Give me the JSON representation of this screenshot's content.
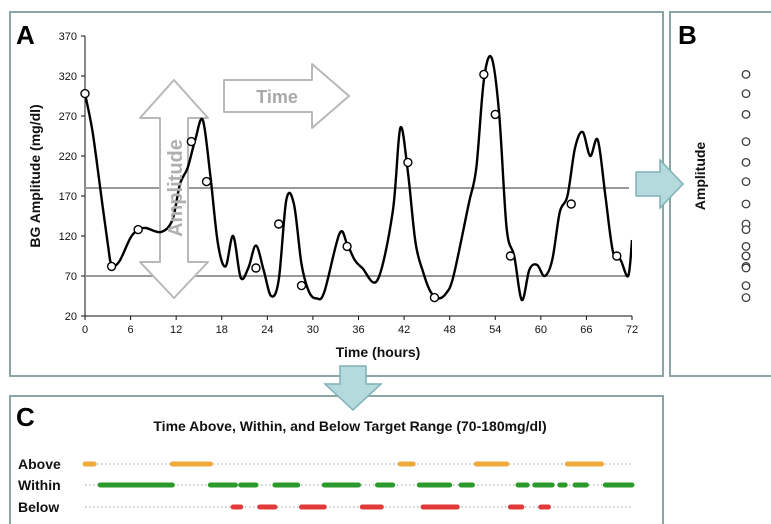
{
  "panels": {
    "a_label": "A",
    "b_label": "B",
    "c_label": "C"
  },
  "annotations": {
    "time": "Time",
    "amplitude": "Amplitude"
  },
  "colors": {
    "frame": "#8aa6a6",
    "arrow_fill": "#b5dadd",
    "arrow_stroke": "#7fb1b7",
    "range_line": "#9a9a9a",
    "above": "#f0a93a",
    "within": "#2a9a2a",
    "below": "#e23a3a",
    "dots": "#999999"
  },
  "chart_data": [
    {
      "type": "line",
      "title": "",
      "xlabel": "Time (hours)",
      "ylabel": "BG Amplitude (mg/dl)",
      "xlim": [
        0,
        72
      ],
      "ylim": [
        20,
        370
      ],
      "xticks": [
        0,
        6,
        12,
        18,
        24,
        30,
        36,
        42,
        48,
        54,
        60,
        66,
        72
      ],
      "yticks": [
        20,
        70,
        120,
        170,
        220,
        270,
        320,
        370
      ],
      "target_range": [
        70,
        180
      ],
      "grid": false,
      "series": [
        {
          "x": [
            0,
            1,
            2,
            3,
            3.5,
            4.5,
            6,
            7,
            8,
            10,
            11.5,
            12.5,
            13.5,
            14.5,
            15.5,
            16.5,
            17.5,
            18.5,
            19.5,
            20.5,
            21.5,
            22.5,
            23.5,
            24.5,
            25.5,
            26.5,
            27.5,
            28.5,
            29.5,
            30.5,
            31.5,
            33.5,
            34.5,
            35.5,
            36.5,
            38.5,
            40.5,
            41.5,
            42.5,
            43.5,
            44.5,
            45.5,
            46.5,
            47.5,
            48.5,
            50.5,
            51.5,
            52.5,
            53.5,
            54.5,
            55.5,
            56.5,
            57.5,
            58.5,
            59.5,
            60.5,
            61.5,
            62.5,
            63.5,
            64.5,
            65.5,
            66.5,
            67.5,
            68.5,
            69.5,
            70.5,
            71.5,
            72
          ],
          "values": [
            298,
            250,
            180,
            110,
            84,
            88,
            118,
            127,
            130,
            125,
            140,
            185,
            205,
            240,
            265,
            195,
            110,
            82,
            120,
            68,
            80,
            108,
            78,
            45,
            65,
            165,
            160,
            85,
            50,
            42,
            50,
            123,
            110,
            90,
            80,
            65,
            150,
            255,
            200,
            112,
            75,
            50,
            42,
            48,
            70,
            160,
            205,
            315,
            343,
            275,
            130,
            95,
            40,
            78,
            84,
            70,
            90,
            150,
            170,
            230,
            250,
            220,
            240,
            170,
            100,
            90,
            70,
            115
          ]
        }
      ],
      "markers": {
        "x": [
          0,
          3.5,
          7,
          14,
          16,
          22.5,
          25.5,
          28.5,
          34.5,
          42.5,
          46,
          52.5,
          54,
          56,
          64,
          70
        ],
        "values": [
          298,
          82,
          128,
          238,
          188,
          80,
          135,
          58,
          107,
          212,
          43,
          322,
          272,
          95,
          160,
          95
        ]
      }
    },
    {
      "type": "scatter",
      "ylabel": "Amplitude",
      "values": [
        322,
        298,
        272,
        238,
        212,
        188,
        160,
        135,
        128,
        107,
        95,
        95,
        82,
        80,
        58,
        43
      ]
    },
    {
      "type": "table",
      "title": "Time Above, Within, and Below Target Range (70-180mg/dl)",
      "rows": [
        {
          "name": "Above",
          "segments": [
            [
              0,
              1.2
            ],
            [
              11.5,
              16.5
            ],
            [
              41.5,
              43.2
            ],
            [
              51.5,
              55.5
            ],
            [
              63.5,
              68
            ]
          ]
        },
        {
          "name": "Within",
          "segments": [
            [
              2,
              11.5
            ],
            [
              16.5,
              19.8
            ],
            [
              20.5,
              22.5
            ],
            [
              25,
              28
            ],
            [
              31.5,
              36
            ],
            [
              38.5,
              40.5
            ],
            [
              44,
              48
            ],
            [
              49.5,
              51
            ],
            [
              57,
              58.2
            ],
            [
              59.2,
              61.5
            ],
            [
              62.5,
              63.2
            ],
            [
              64.5,
              66
            ],
            [
              68.5,
              72
            ]
          ]
        },
        {
          "name": "Below",
          "segments": [
            [
              19.5,
              20.5
            ],
            [
              23,
              25
            ],
            [
              28.5,
              31.5
            ],
            [
              36.5,
              39
            ],
            [
              44.5,
              49
            ],
            [
              56,
              57.5
            ],
            [
              60,
              61
            ]
          ]
        }
      ]
    }
  ]
}
